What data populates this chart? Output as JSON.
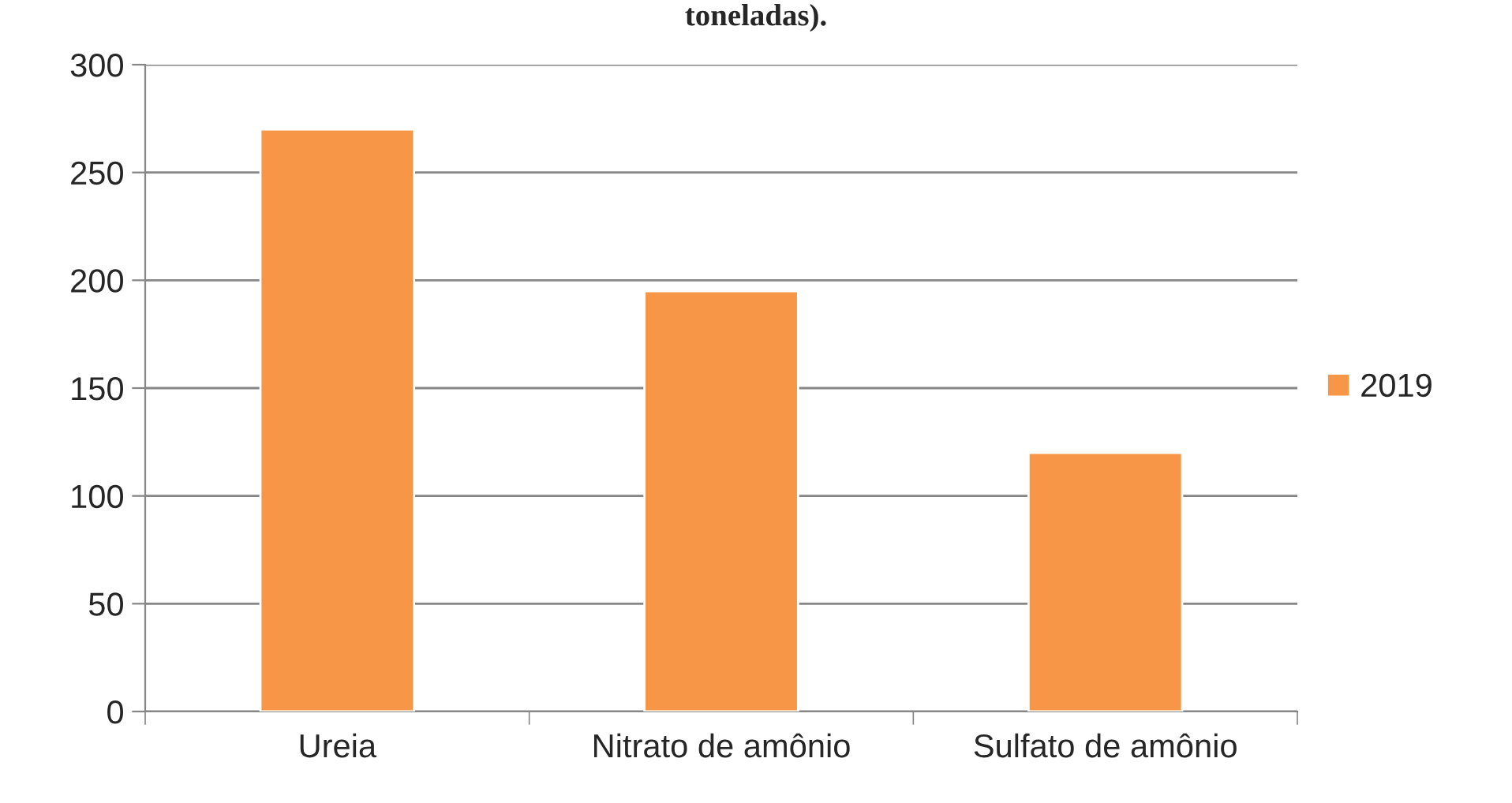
{
  "chart_data": {
    "type": "bar",
    "title": "toneladas).",
    "categories": [
      "Ureia",
      "Nitrato de amônio",
      "Sulfato de amônio"
    ],
    "series": [
      {
        "name": "2019",
        "color": "#f79646",
        "values": [
          270,
          195,
          120
        ]
      }
    ],
    "ylim": [
      0,
      300
    ],
    "yticks": [
      0,
      50,
      100,
      150,
      200,
      250,
      300
    ],
    "grid": "y",
    "legend": "right"
  }
}
